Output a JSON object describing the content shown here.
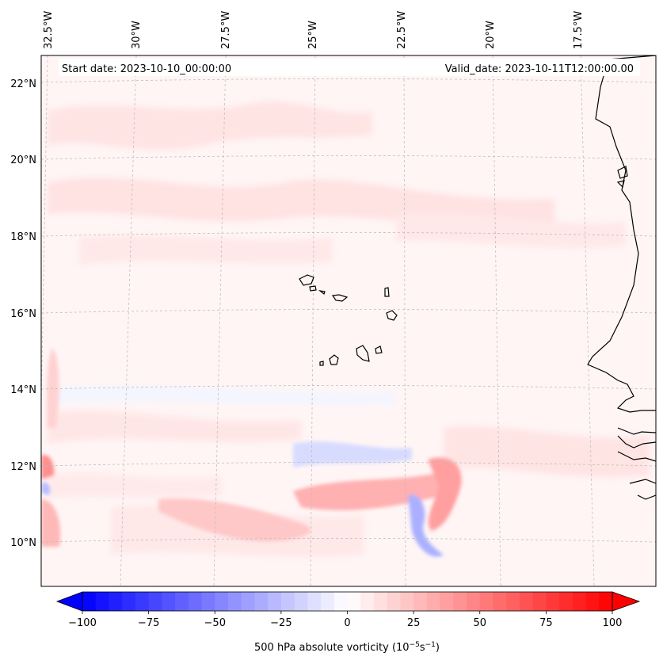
{
  "map": {
    "start_date": "Start date: 2023-10-10_00:00:00",
    "valid_date": "Valid_date: 2023-10-11T12:00:00.00",
    "lon_labels": [
      "32.5°W",
      "30°W",
      "27.5°W",
      "25°W",
      "22.5°W",
      "20°W",
      "17.5°W"
    ],
    "lat_labels": [
      "22°N",
      "20°N",
      "18°N",
      "16°N",
      "14°N",
      "12°N",
      "10°N"
    ]
  },
  "colorbar": {
    "label_prefix": "500 hPa absolute vorticity (10",
    "label_exp1": "−5",
    "label_mid": "s",
    "label_exp2": "−1",
    "label_suffix": ")",
    "min": -100,
    "max": 100,
    "step": 5,
    "ticks": [
      "−100",
      "−75",
      "−50",
      "−25",
      "0",
      "25",
      "50",
      "75",
      "100"
    ],
    "ticks_values": [
      -100,
      -75,
      -50,
      -25,
      0,
      25,
      50,
      75,
      100
    ],
    "colormap": "bwr"
  },
  "colors": {
    "positive": "#ff0000",
    "negative": "#0000ff",
    "neutral": "#ffffff",
    "coast": "#000000"
  }
}
